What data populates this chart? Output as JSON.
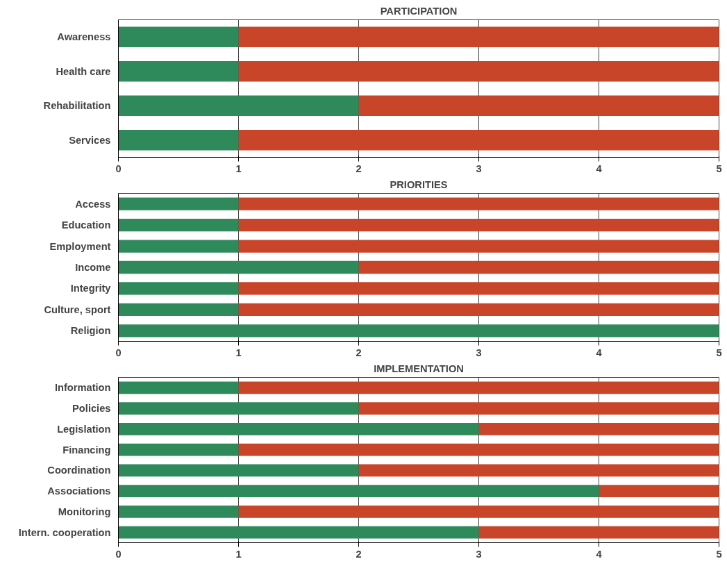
{
  "chart_data": [
    {
      "type": "bar",
      "title": "PARTICIPATION",
      "orientation": "horizontal",
      "stacked": true,
      "grid": "x",
      "categories": [
        "Awareness",
        "Health care",
        "Rehabilitation",
        "Services"
      ],
      "series": [
        {
          "color": "#2e8a5a",
          "values": [
            1,
            1,
            2,
            1
          ]
        },
        {
          "color": "#c8452a",
          "values": [
            4,
            4,
            3,
            4
          ]
        }
      ],
      "xlim": [
        0,
        5
      ],
      "xticks": [
        0,
        1,
        2,
        3,
        4,
        5
      ]
    },
    {
      "type": "bar",
      "title": "PRIORITIES",
      "orientation": "horizontal",
      "stacked": true,
      "grid": "x",
      "categories": [
        "Access",
        "Education",
        "Employment",
        "Income",
        "Integrity",
        "Culture, sport",
        "Religion"
      ],
      "series": [
        {
          "color": "#2e8a5a",
          "values": [
            1,
            1,
            1,
            2,
            1,
            1,
            5
          ]
        },
        {
          "color": "#c8452a",
          "values": [
            4,
            4,
            4,
            3,
            4,
            4,
            0
          ]
        }
      ],
      "xlim": [
        0,
        5
      ],
      "xticks": [
        0,
        1,
        2,
        3,
        4,
        5
      ]
    },
    {
      "type": "bar",
      "title": "IMPLEMENTATION",
      "orientation": "horizontal",
      "stacked": true,
      "grid": "x",
      "categories": [
        "Information",
        "Policies",
        "Legislation",
        "Financing",
        "Coordination",
        "Associations",
        "Monitoring",
        "Intern. cooperation"
      ],
      "series": [
        {
          "color": "#2e8a5a",
          "values": [
            1,
            2,
            3,
            1,
            2,
            4,
            1,
            3
          ]
        },
        {
          "color": "#c8452a",
          "values": [
            4,
            3,
            2,
            4,
            3,
            1,
            4,
            2
          ]
        }
      ],
      "xlim": [
        0,
        5
      ],
      "xticks": [
        0,
        1,
        2,
        3,
        4,
        5
      ]
    }
  ]
}
